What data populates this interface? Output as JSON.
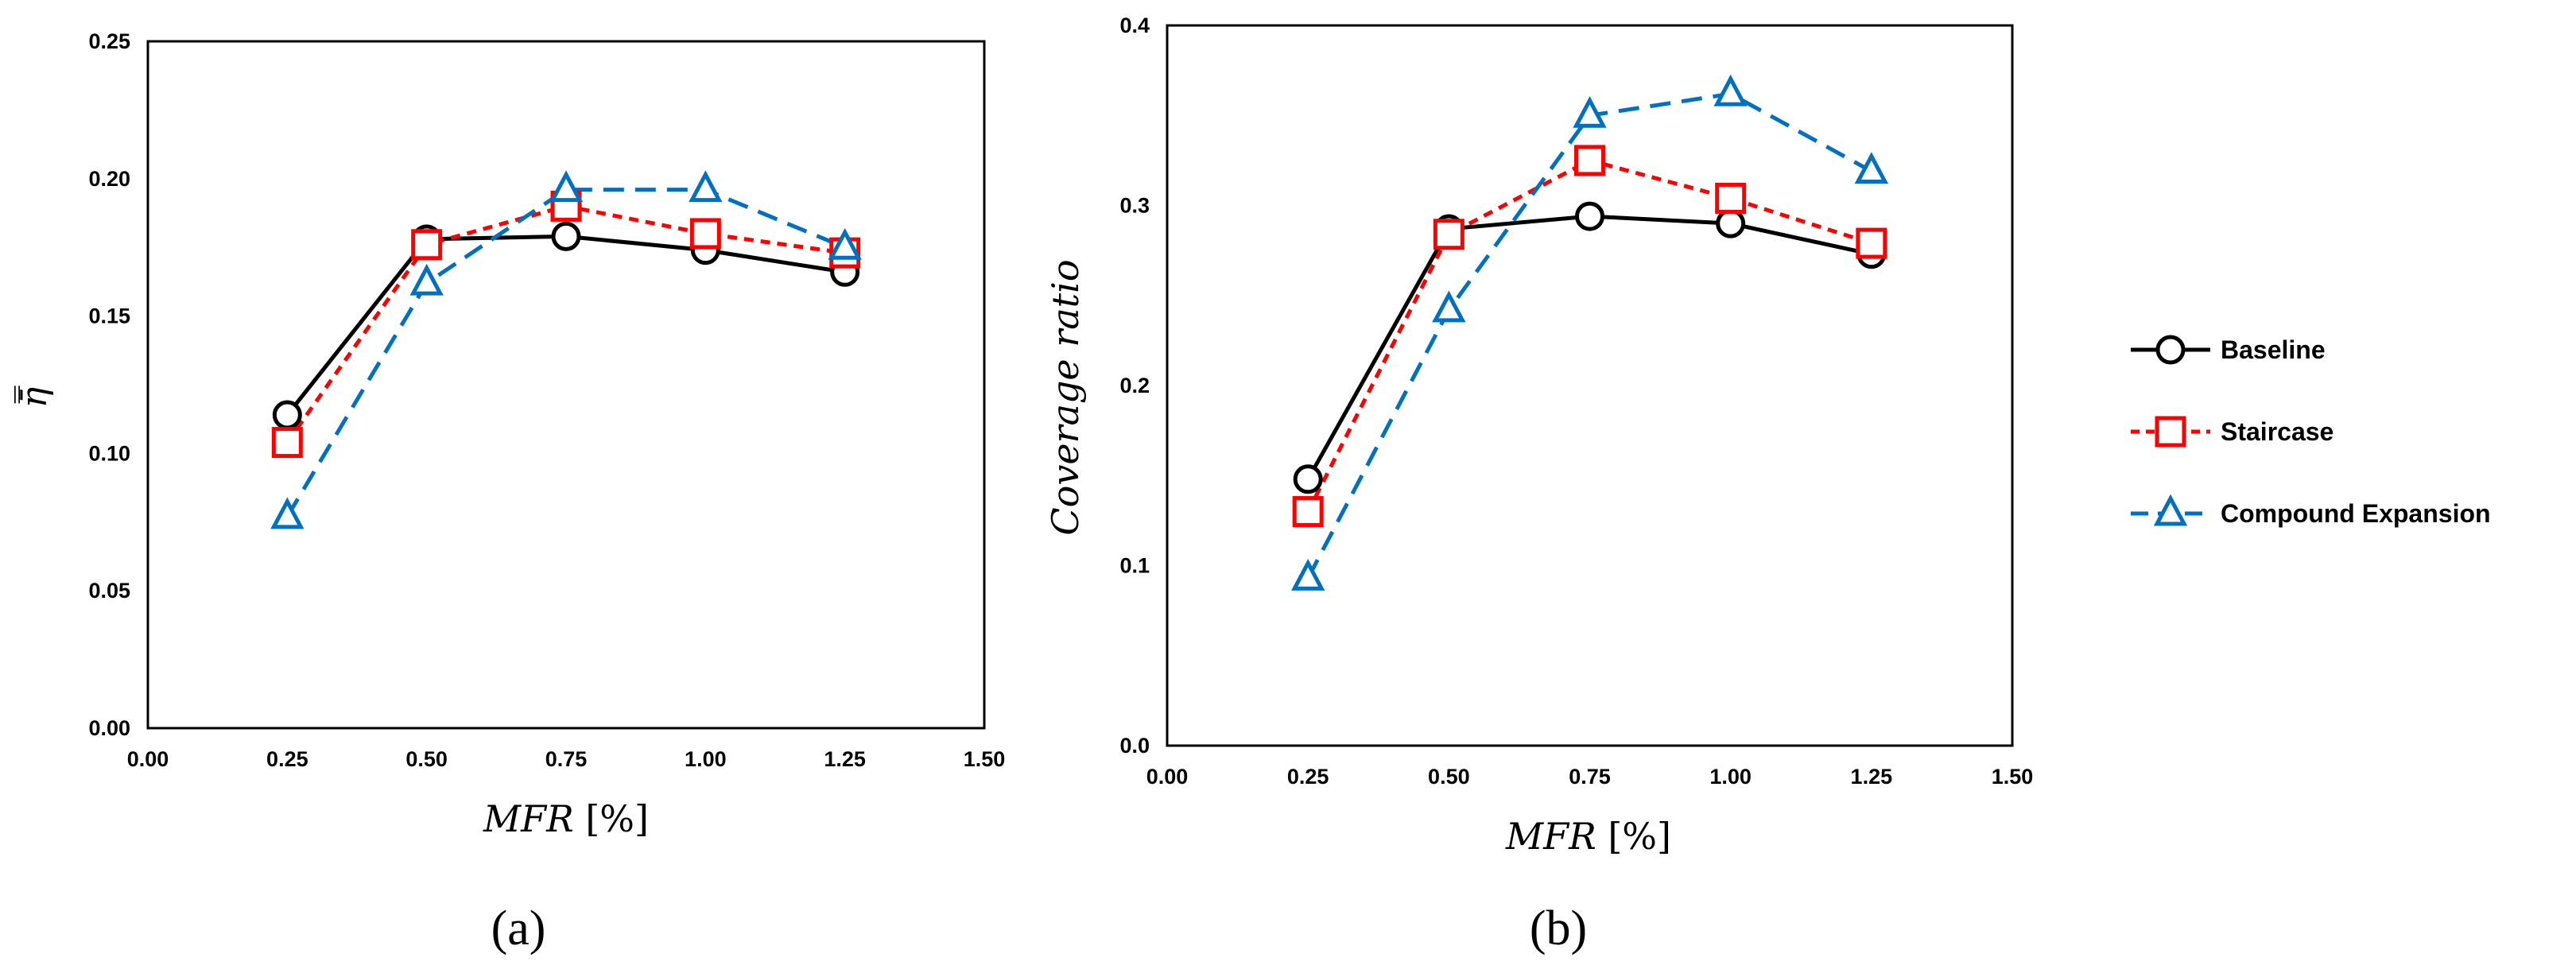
{
  "chart_data": [
    {
      "panel": "a",
      "type": "line",
      "panel_label": "(a)",
      "xlabel": "MFR",
      "xunit": "[%]",
      "ylabel": "η̄̿",
      "xlim": [
        0.0,
        1.5
      ],
      "ylim": [
        0.0,
        0.25
      ],
      "xticks": [
        "0.00",
        "0.25",
        "0.50",
        "0.75",
        "1.00",
        "1.25",
        "1.50"
      ],
      "yticks": [
        "0.00",
        "0.05",
        "0.10",
        "0.15",
        "0.20",
        "0.25"
      ],
      "x": [
        0.25,
        0.5,
        0.75,
        1.0,
        1.25
      ],
      "series": [
        {
          "name": "Baseline",
          "values": [
            0.114,
            0.178,
            0.179,
            0.174,
            0.166
          ]
        },
        {
          "name": "Staircase",
          "values": [
            0.104,
            0.176,
            0.19,
            0.18,
            0.173
          ]
        },
        {
          "name": "Compound Expansion",
          "values": [
            0.077,
            0.162,
            0.196,
            0.196,
            0.175
          ]
        }
      ]
    },
    {
      "panel": "b",
      "type": "line",
      "panel_label": "(b)",
      "xlabel": "MFR",
      "xunit": "[%]",
      "ylabel": "Coverage ratio",
      "xlim": [
        0.0,
        1.5
      ],
      "ylim": [
        0.0,
        0.4
      ],
      "xticks": [
        "0.00",
        "0.25",
        "0.50",
        "0.75",
        "1.00",
        "1.25",
        "1.50"
      ],
      "yticks": [
        "0.0",
        "0.1",
        "0.2",
        "0.3",
        "0.4"
      ],
      "x": [
        0.25,
        0.5,
        0.75,
        1.0,
        1.25
      ],
      "series": [
        {
          "name": "Baseline",
          "values": [
            0.148,
            0.287,
            0.294,
            0.29,
            0.273
          ]
        },
        {
          "name": "Staircase",
          "values": [
            0.13,
            0.284,
            0.325,
            0.304,
            0.279
          ]
        },
        {
          "name": "Compound Expansion",
          "values": [
            0.093,
            0.242,
            0.35,
            0.362,
            0.319
          ]
        }
      ]
    }
  ],
  "legend": {
    "items": [
      {
        "name": "Baseline",
        "color": "#000000",
        "marker": "circle",
        "dash": "solid"
      },
      {
        "name": "Staircase",
        "color": "#ff0000",
        "marker": "square",
        "dash": "short-dash"
      },
      {
        "name": "Compound Expansion",
        "color": "#0070c0",
        "marker": "triangle",
        "dash": "long-dash"
      }
    ]
  }
}
